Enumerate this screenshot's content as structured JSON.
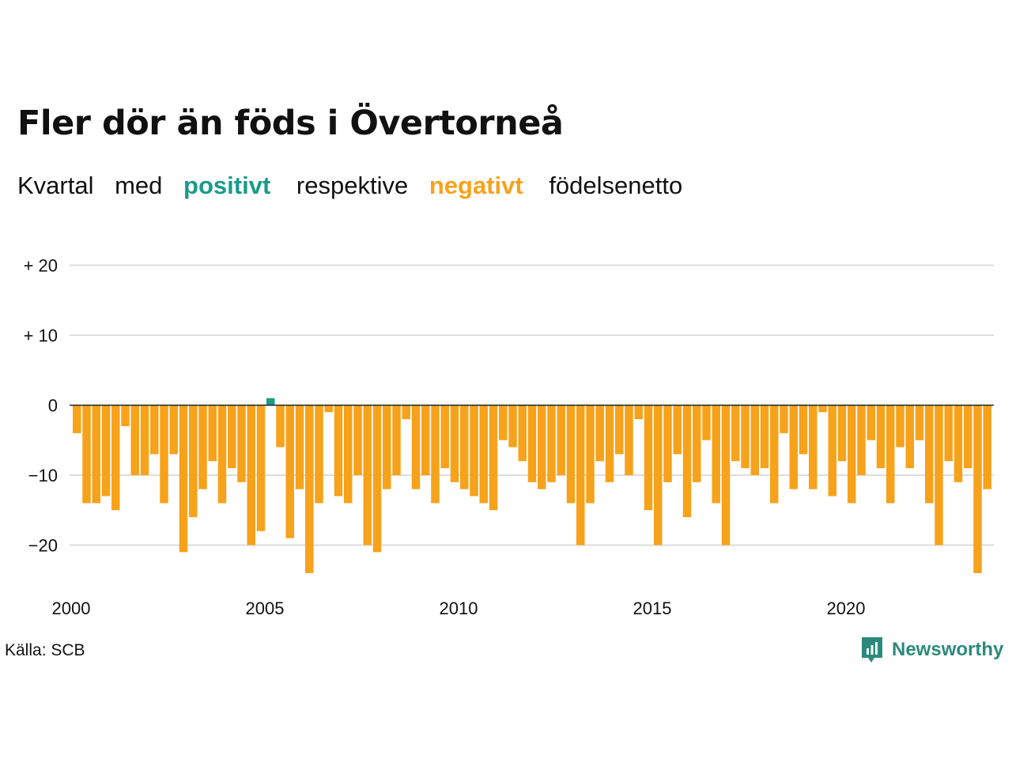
{
  "title": "Fler dör än föds i Övertorneå",
  "subtitle": {
    "part1": "Kvartal",
    "part2": "med",
    "positive": "positivt",
    "part3": "respektive",
    "negative": "negativt",
    "part4": "födelsenetto"
  },
  "colors": {
    "positive": "#1a9a8a",
    "negative": "#f7a21b",
    "grid": "#dddddd",
    "axis": "#222222"
  },
  "source": "Källa: SCB",
  "brand": {
    "name": "Newsworthy",
    "icon": "newsworthy-logo-icon"
  },
  "chart_data": {
    "type": "bar",
    "x_start": "2000 Q1",
    "ylim": [
      -25,
      20
    ],
    "y_ticks": [
      {
        "value": 20,
        "label": "+ 20"
      },
      {
        "value": 10,
        "label": "+ 10"
      },
      {
        "value": 0,
        "label": "0"
      },
      {
        "value": -10,
        "label": "−10"
      },
      {
        "value": -20,
        "label": "−20"
      }
    ],
    "x_ticks": [
      "2000",
      "2005",
      "2010",
      "2015",
      "2020"
    ],
    "grid": true,
    "values": [
      -4,
      -14,
      -14,
      -13,
      -15,
      -3,
      -10,
      -10,
      -7,
      -14,
      -7,
      -21,
      -16,
      -12,
      -8,
      -14,
      -9,
      -11,
      -20,
      -18,
      1,
      -6,
      -19,
      -12,
      -24,
      -14,
      -1,
      -13,
      -14,
      -10,
      -20,
      -21,
      -12,
      -10,
      -2,
      -12,
      -10,
      -14,
      -9,
      -11,
      -12,
      -13,
      -14,
      -15,
      -5,
      -6,
      -8,
      -11,
      -12,
      -11,
      -10,
      -14,
      -20,
      -14,
      -8,
      -11,
      -7,
      -10,
      -2,
      -15,
      -20,
      -11,
      -7,
      -16,
      -11,
      -5,
      -14,
      -20,
      -8,
      -9,
      -10,
      -9,
      -14,
      -4,
      -12,
      -7,
      -12,
      -1,
      -13,
      -8,
      -14,
      -10,
      -5,
      -9,
      -14,
      -6,
      -9,
      -5,
      -14,
      -20,
      -8,
      -11,
      -9,
      -24,
      -12
    ]
  }
}
